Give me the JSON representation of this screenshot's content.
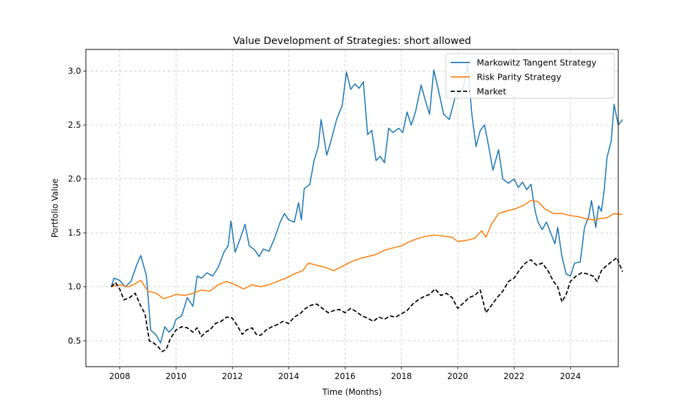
{
  "chart_data": {
    "type": "line",
    "title": "Value Development of Strategies: short allowed",
    "xlabel": "Time (Months)",
    "ylabel": "Portfolio Value",
    "xlim": [
      2006.8,
      2025.7
    ],
    "ylim": [
      0.26,
      3.2
    ],
    "x_ticks": [
      2008,
      2010,
      2012,
      2014,
      2016,
      2018,
      2020,
      2022,
      2024
    ],
    "y_ticks": [
      0.5,
      1.0,
      1.5,
      2.0,
      2.5,
      3.0
    ],
    "y_tick_labels": [
      "0.5",
      "1.0",
      "1.5",
      "2.0",
      "2.5",
      "3.0"
    ],
    "grid": true,
    "legend_position": "top-right",
    "series": [
      {
        "name": "Markowitz Tangent Strategy",
        "color": "#1f77b4",
        "style": "solid",
        "points": [
          [
            2007.7,
            1.0
          ],
          [
            2007.8,
            1.08
          ],
          [
            2008.0,
            1.06
          ],
          [
            2008.2,
            1.0
          ],
          [
            2008.4,
            1.05
          ],
          [
            2008.6,
            1.2
          ],
          [
            2008.75,
            1.29
          ],
          [
            2008.95,
            1.1
          ],
          [
            2009.1,
            0.6
          ],
          [
            2009.3,
            0.55
          ],
          [
            2009.45,
            0.48
          ],
          [
            2009.6,
            0.63
          ],
          [
            2009.75,
            0.58
          ],
          [
            2009.9,
            0.62
          ],
          [
            2010.0,
            0.7
          ],
          [
            2010.2,
            0.73
          ],
          [
            2010.4,
            0.9
          ],
          [
            2010.6,
            0.82
          ],
          [
            2010.75,
            1.1
          ],
          [
            2010.9,
            1.08
          ],
          [
            2011.1,
            1.13
          ],
          [
            2011.3,
            1.1
          ],
          [
            2011.5,
            1.18
          ],
          [
            2011.7,
            1.32
          ],
          [
            2011.85,
            1.38
          ],
          [
            2011.95,
            1.61
          ],
          [
            2012.1,
            1.32
          ],
          [
            2012.3,
            1.46
          ],
          [
            2012.45,
            1.58
          ],
          [
            2012.6,
            1.38
          ],
          [
            2012.8,
            1.34
          ],
          [
            2012.95,
            1.28
          ],
          [
            2013.1,
            1.35
          ],
          [
            2013.3,
            1.33
          ],
          [
            2013.5,
            1.45
          ],
          [
            2013.7,
            1.6
          ],
          [
            2013.85,
            1.68
          ],
          [
            2014.0,
            1.62
          ],
          [
            2014.2,
            1.6
          ],
          [
            2014.35,
            1.78
          ],
          [
            2014.45,
            1.62
          ],
          [
            2014.55,
            1.91
          ],
          [
            2014.75,
            1.95
          ],
          [
            2014.9,
            2.17
          ],
          [
            2015.05,
            2.3
          ],
          [
            2015.15,
            2.55
          ],
          [
            2015.35,
            2.22
          ],
          [
            2015.5,
            2.35
          ],
          [
            2015.7,
            2.55
          ],
          [
            2015.9,
            2.68
          ],
          [
            2016.05,
            2.99
          ],
          [
            2016.2,
            2.83
          ],
          [
            2016.35,
            2.88
          ],
          [
            2016.5,
            2.84
          ],
          [
            2016.65,
            2.9
          ],
          [
            2016.8,
            2.41
          ],
          [
            2016.95,
            2.45
          ],
          [
            2017.1,
            2.17
          ],
          [
            2017.25,
            2.21
          ],
          [
            2017.4,
            2.15
          ],
          [
            2017.55,
            2.47
          ],
          [
            2017.7,
            2.43
          ],
          [
            2017.9,
            2.47
          ],
          [
            2018.05,
            2.43
          ],
          [
            2018.2,
            2.62
          ],
          [
            2018.35,
            2.5
          ],
          [
            2018.5,
            2.62
          ],
          [
            2018.7,
            2.87
          ],
          [
            2018.9,
            2.68
          ],
          [
            2019.0,
            2.6
          ],
          [
            2019.15,
            3.01
          ],
          [
            2019.3,
            2.84
          ],
          [
            2019.5,
            2.6
          ],
          [
            2019.7,
            2.55
          ],
          [
            2019.9,
            2.75
          ],
          [
            2020.05,
            2.8
          ],
          [
            2020.2,
            2.85
          ],
          [
            2020.35,
            3.06
          ],
          [
            2020.5,
            2.6
          ],
          [
            2020.65,
            2.3
          ],
          [
            2020.8,
            2.45
          ],
          [
            2020.95,
            2.5
          ],
          [
            2021.1,
            2.3
          ],
          [
            2021.25,
            2.08
          ],
          [
            2021.45,
            2.27
          ],
          [
            2021.6,
            2.0
          ],
          [
            2021.8,
            1.96
          ],
          [
            2022.0,
            2.0
          ],
          [
            2022.15,
            1.92
          ],
          [
            2022.3,
            1.97
          ],
          [
            2022.45,
            1.9
          ],
          [
            2022.6,
            1.95
          ],
          [
            2022.75,
            1.7
          ],
          [
            2022.85,
            1.6
          ],
          [
            2023.0,
            1.53
          ],
          [
            2023.15,
            1.6
          ],
          [
            2023.3,
            1.5
          ],
          [
            2023.45,
            1.4
          ],
          [
            2023.55,
            1.55
          ],
          [
            2023.7,
            1.28
          ],
          [
            2023.85,
            1.12
          ],
          [
            2024.0,
            1.1
          ],
          [
            2024.15,
            1.22
          ],
          [
            2024.35,
            1.23
          ],
          [
            2024.5,
            1.55
          ],
          [
            2024.65,
            1.65
          ],
          [
            2024.75,
            1.8
          ],
          [
            2024.9,
            1.55
          ],
          [
            2025.0,
            1.75
          ],
          [
            2025.1,
            1.7
          ],
          [
            2025.2,
            1.9
          ],
          [
            2025.3,
            2.2
          ],
          [
            2025.45,
            2.35
          ],
          [
            2025.55,
            2.69
          ],
          [
            2025.7,
            2.5
          ],
          [
            2025.85,
            2.55
          ]
        ]
      },
      {
        "name": "Risk Parity Strategy",
        "color": "#ff7f0e",
        "style": "solid",
        "points": [
          [
            2007.7,
            1.0
          ],
          [
            2008.0,
            1.02
          ],
          [
            2008.3,
            1.0
          ],
          [
            2008.5,
            1.02
          ],
          [
            2008.75,
            1.06
          ],
          [
            2009.0,
            0.96
          ],
          [
            2009.3,
            0.94
          ],
          [
            2009.55,
            0.89
          ],
          [
            2009.8,
            0.91
          ],
          [
            2010.0,
            0.93
          ],
          [
            2010.3,
            0.92
          ],
          [
            2010.6,
            0.94
          ],
          [
            2010.9,
            0.97
          ],
          [
            2011.2,
            0.96
          ],
          [
            2011.5,
            1.02
          ],
          [
            2011.8,
            1.05
          ],
          [
            2012.1,
            1.02
          ],
          [
            2012.4,
            0.98
          ],
          [
            2012.7,
            1.02
          ],
          [
            2013.0,
            1.0
          ],
          [
            2013.3,
            1.02
          ],
          [
            2013.6,
            1.05
          ],
          [
            2013.9,
            1.08
          ],
          [
            2014.2,
            1.12
          ],
          [
            2014.5,
            1.15
          ],
          [
            2014.7,
            1.22
          ],
          [
            2015.0,
            1.2
          ],
          [
            2015.3,
            1.18
          ],
          [
            2015.6,
            1.15
          ],
          [
            2015.9,
            1.19
          ],
          [
            2016.2,
            1.23
          ],
          [
            2016.5,
            1.26
          ],
          [
            2016.8,
            1.28
          ],
          [
            2017.1,
            1.3
          ],
          [
            2017.4,
            1.34
          ],
          [
            2017.7,
            1.36
          ],
          [
            2018.0,
            1.38
          ],
          [
            2018.3,
            1.42
          ],
          [
            2018.6,
            1.45
          ],
          [
            2018.9,
            1.47
          ],
          [
            2019.2,
            1.48
          ],
          [
            2019.5,
            1.47
          ],
          [
            2019.8,
            1.46
          ],
          [
            2020.0,
            1.42
          ],
          [
            2020.3,
            1.43
          ],
          [
            2020.6,
            1.45
          ],
          [
            2020.85,
            1.52
          ],
          [
            2021.0,
            1.46
          ],
          [
            2021.2,
            1.58
          ],
          [
            2021.45,
            1.68
          ],
          [
            2021.7,
            1.7
          ],
          [
            2022.0,
            1.72
          ],
          [
            2022.3,
            1.75
          ],
          [
            2022.6,
            1.8
          ],
          [
            2022.85,
            1.79
          ],
          [
            2023.1,
            1.72
          ],
          [
            2023.4,
            1.68
          ],
          [
            2023.7,
            1.68
          ],
          [
            2024.0,
            1.66
          ],
          [
            2024.3,
            1.65
          ],
          [
            2024.55,
            1.63
          ],
          [
            2024.85,
            1.62
          ],
          [
            2025.0,
            1.63
          ],
          [
            2025.3,
            1.64
          ],
          [
            2025.55,
            1.68
          ],
          [
            2025.85,
            1.67
          ]
        ]
      },
      {
        "name": "Market",
        "color": "#000000",
        "style": "dashed",
        "points": [
          [
            2007.7,
            1.0
          ],
          [
            2007.85,
            1.04
          ],
          [
            2008.0,
            0.98
          ],
          [
            2008.15,
            0.88
          ],
          [
            2008.35,
            0.9
          ],
          [
            2008.55,
            0.94
          ],
          [
            2008.75,
            0.82
          ],
          [
            2008.9,
            0.75
          ],
          [
            2009.05,
            0.5
          ],
          [
            2009.2,
            0.48
          ],
          [
            2009.35,
            0.45
          ],
          [
            2009.5,
            0.4
          ],
          [
            2009.65,
            0.42
          ],
          [
            2009.8,
            0.52
          ],
          [
            2010.0,
            0.6
          ],
          [
            2010.2,
            0.63
          ],
          [
            2010.4,
            0.62
          ],
          [
            2010.6,
            0.58
          ],
          [
            2010.75,
            0.62
          ],
          [
            2010.9,
            0.54
          ],
          [
            2011.05,
            0.58
          ],
          [
            2011.2,
            0.6
          ],
          [
            2011.4,
            0.66
          ],
          [
            2011.6,
            0.68
          ],
          [
            2011.8,
            0.72
          ],
          [
            2012.0,
            0.71
          ],
          [
            2012.15,
            0.65
          ],
          [
            2012.35,
            0.56
          ],
          [
            2012.5,
            0.6
          ],
          [
            2012.7,
            0.62
          ],
          [
            2012.85,
            0.56
          ],
          [
            2013.0,
            0.55
          ],
          [
            2013.2,
            0.6
          ],
          [
            2013.4,
            0.63
          ],
          [
            2013.6,
            0.65
          ],
          [
            2013.8,
            0.68
          ],
          [
            2014.0,
            0.66
          ],
          [
            2014.2,
            0.72
          ],
          [
            2014.4,
            0.75
          ],
          [
            2014.6,
            0.8
          ],
          [
            2014.8,
            0.83
          ],
          [
            2015.0,
            0.84
          ],
          [
            2015.2,
            0.8
          ],
          [
            2015.4,
            0.76
          ],
          [
            2015.6,
            0.78
          ],
          [
            2015.8,
            0.79
          ],
          [
            2016.0,
            0.76
          ],
          [
            2016.2,
            0.8
          ],
          [
            2016.4,
            0.77
          ],
          [
            2016.6,
            0.73
          ],
          [
            2016.8,
            0.71
          ],
          [
            2017.0,
            0.68
          ],
          [
            2017.2,
            0.72
          ],
          [
            2017.4,
            0.7
          ],
          [
            2017.6,
            0.73
          ],
          [
            2017.8,
            0.72
          ],
          [
            2018.0,
            0.75
          ],
          [
            2018.2,
            0.78
          ],
          [
            2018.4,
            0.84
          ],
          [
            2018.6,
            0.88
          ],
          [
            2018.8,
            0.91
          ],
          [
            2019.0,
            0.93
          ],
          [
            2019.2,
            0.98
          ],
          [
            2019.4,
            0.92
          ],
          [
            2019.6,
            0.94
          ],
          [
            2019.8,
            0.9
          ],
          [
            2020.0,
            0.8
          ],
          [
            2020.2,
            0.85
          ],
          [
            2020.4,
            0.9
          ],
          [
            2020.6,
            0.92
          ],
          [
            2020.8,
            0.97
          ],
          [
            2021.0,
            0.76
          ],
          [
            2021.2,
            0.83
          ],
          [
            2021.4,
            0.9
          ],
          [
            2021.6,
            0.96
          ],
          [
            2021.8,
            1.05
          ],
          [
            2022.0,
            1.08
          ],
          [
            2022.2,
            1.16
          ],
          [
            2022.4,
            1.22
          ],
          [
            2022.6,
            1.25
          ],
          [
            2022.8,
            1.2
          ],
          [
            2023.0,
            1.22
          ],
          [
            2023.2,
            1.15
          ],
          [
            2023.4,
            1.05
          ],
          [
            2023.55,
            1.0
          ],
          [
            2023.7,
            0.86
          ],
          [
            2023.85,
            0.93
          ],
          [
            2024.0,
            1.05
          ],
          [
            2024.2,
            1.1
          ],
          [
            2024.4,
            1.13
          ],
          [
            2024.6,
            1.12
          ],
          [
            2024.8,
            1.1
          ],
          [
            2024.95,
            1.05
          ],
          [
            2025.1,
            1.15
          ],
          [
            2025.3,
            1.2
          ],
          [
            2025.5,
            1.24
          ],
          [
            2025.65,
            1.27
          ],
          [
            2025.85,
            1.14
          ]
        ]
      }
    ]
  }
}
